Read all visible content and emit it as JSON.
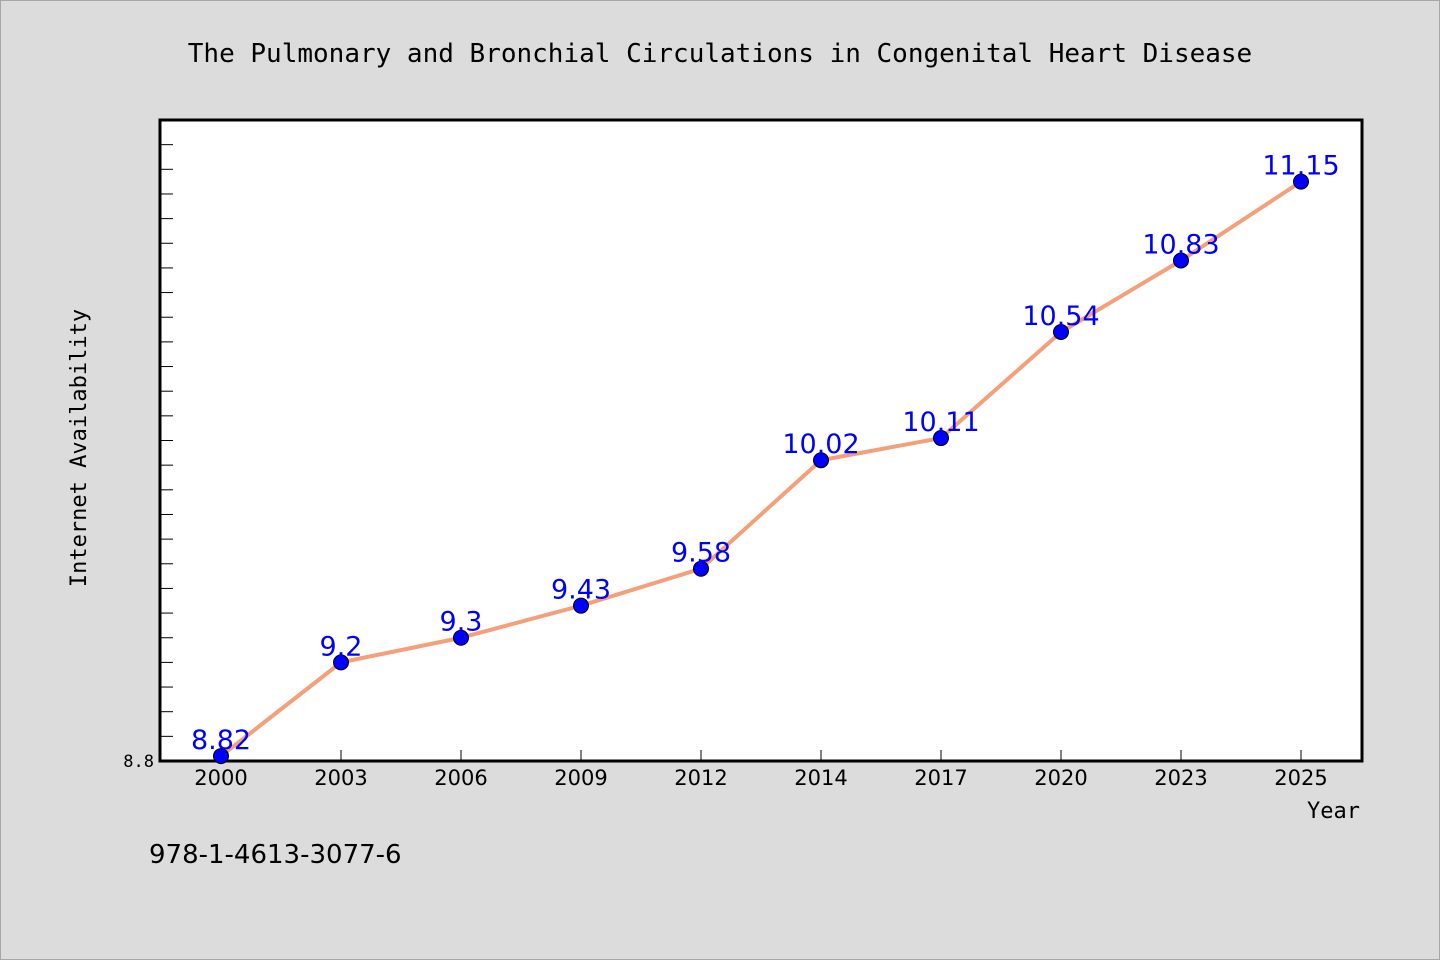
{
  "chart_data": {
    "type": "line",
    "title": "The Pulmonary and Bronchial Circulations in Congenital Heart Disease",
    "xlabel": "Year",
    "ylabel": "Internet Availability",
    "categories": [
      "2000",
      "2003",
      "2006",
      "2009",
      "2012",
      "2014",
      "2017",
      "2020",
      "2023",
      "2025"
    ],
    "series": [
      {
        "values": [
          8.82,
          9.2,
          9.3,
          9.43,
          9.58,
          10.02,
          10.11,
          10.54,
          10.83,
          11.15
        ],
        "data_labels": [
          "8.82",
          "9.2",
          "9.3",
          "9.43",
          "9.58",
          "10.02",
          "10.11",
          "10.54",
          "10.83",
          "11.15"
        ]
      }
    ],
    "ylim": [
      8.8,
      11.4
    ],
    "yticks_labeled": [
      "8.8"
    ],
    "minor_tick_step": 0.1,
    "grid": false,
    "legend": "none",
    "colors": {
      "line": "#f4a07a",
      "marker": "#0000ff",
      "data_label": "#0000ff",
      "plot_background": "#ffffff",
      "page_background": "#dcdcdc"
    }
  },
  "footer": {
    "isbn": "978-1-4613-3077-6"
  }
}
